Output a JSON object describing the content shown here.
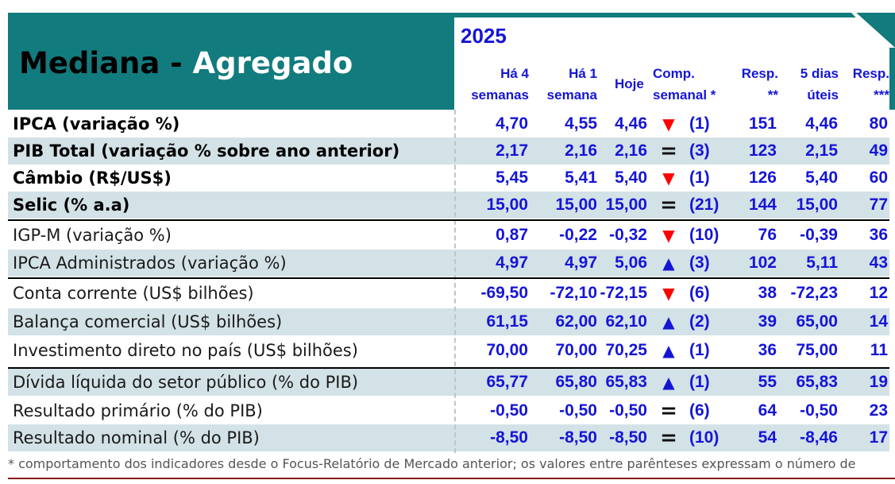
{
  "header": {
    "title_part1": "Mediana -",
    "title_part2": "Agregado",
    "year": "2025",
    "columns": {
      "ha4": [
        "Há 4",
        "semanas"
      ],
      "ha1": [
        "Há 1",
        "semana"
      ],
      "hoje": "Hoje",
      "comp": [
        "Comp.",
        "semanal *"
      ],
      "resp": [
        "Resp.",
        "**"
      ],
      "cinco": [
        "5 dias",
        "úteis"
      ],
      "resp3": [
        "Resp.",
        "***"
      ]
    }
  },
  "colors": {
    "teal": "#127b7d",
    "blue_text": "#1515d6",
    "row_shade": "#d3e2e6",
    "arrow_down": "#ff0000",
    "arrow_up": "#1515d6"
  },
  "rows": [
    {
      "label": "IPCA (variação %)",
      "ha4": "4,70",
      "ha1": "4,55",
      "hoje": "4,46",
      "trend": "down",
      "weeks": "(1)",
      "resp": "151",
      "cinco": "4,46",
      "resp3": "80"
    },
    {
      "label": "PIB Total (variação % sobre ano anterior)",
      "ha4": "2,17",
      "ha1": "2,16",
      "hoje": "2,16",
      "trend": "eq",
      "weeks": "(3)",
      "resp": "123",
      "cinco": "2,15",
      "resp3": "49"
    },
    {
      "label": "Câmbio (R$/US$)",
      "ha4": "5,45",
      "ha1": "5,41",
      "hoje": "5,40",
      "trend": "down",
      "weeks": "(1)",
      "resp": "126",
      "cinco": "5,40",
      "resp3": "60"
    },
    {
      "label": "Selic (% a.a)",
      "ha4": "15,00",
      "ha1": "15,00",
      "hoje": "15,00",
      "trend": "eq",
      "weeks": "(21)",
      "resp": "144",
      "cinco": "15,00",
      "resp3": "77"
    },
    {
      "label": "IGP-M (variação %)",
      "ha4": "0,87",
      "ha1": "-0,22",
      "hoje": "-0,32",
      "trend": "down",
      "weeks": "(10)",
      "resp": "76",
      "cinco": "-0,39",
      "resp3": "36"
    },
    {
      "label": "IPCA Administrados (variação %)",
      "ha4": "4,97",
      "ha1": "4,97",
      "hoje": "5,06",
      "trend": "up",
      "weeks": "(3)",
      "resp": "102",
      "cinco": "5,11",
      "resp3": "43"
    },
    {
      "label": "Conta corrente (US$ bilhões)",
      "ha4": "-69,50",
      "ha1": "-72,10",
      "hoje": "-72,15",
      "trend": "down",
      "weeks": "(6)",
      "resp": "38",
      "cinco": "-72,23",
      "resp3": "12"
    },
    {
      "label": "Balança comercial (US$ bilhões)",
      "ha4": "61,15",
      "ha1": "62,00",
      "hoje": "62,10",
      "trend": "up",
      "weeks": "(2)",
      "resp": "39",
      "cinco": "65,00",
      "resp3": "14"
    },
    {
      "label": "Investimento direto no país (US$ bilhões)",
      "ha4": "70,00",
      "ha1": "70,00",
      "hoje": "70,25",
      "trend": "up",
      "weeks": "(1)",
      "resp": "36",
      "cinco": "75,00",
      "resp3": "11"
    },
    {
      "label": "Dívida líquida do setor público (% do PIB)",
      "ha4": "65,77",
      "ha1": "65,80",
      "hoje": "65,83",
      "trend": "up",
      "weeks": "(1)",
      "resp": "55",
      "cinco": "65,83",
      "resp3": "19"
    },
    {
      "label": "Resultado primário (% do PIB)",
      "ha4": "-0,50",
      "ha1": "-0,50",
      "hoje": "-0,50",
      "trend": "eq",
      "weeks": "(6)",
      "resp": "64",
      "cinco": "-0,50",
      "resp3": "23"
    },
    {
      "label": "Resultado nominal (% do PIB)",
      "ha4": "-8,50",
      "ha1": "-8,50",
      "hoje": "-8,50",
      "trend": "eq",
      "weeks": "(10)",
      "resp": "54",
      "cinco": "-8,46",
      "resp3": "17"
    }
  ],
  "footnote": "* comportamento dos indicadores desde o Focus-Relatório de Mercado anterior; os valores entre parênteses expressam o número de"
}
